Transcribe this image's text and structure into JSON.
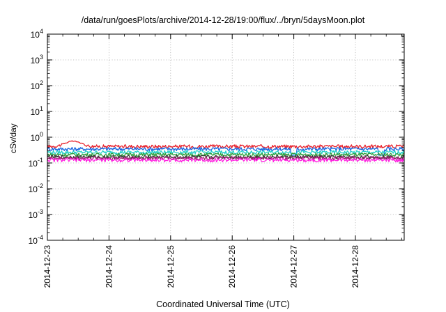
{
  "chart_data": {
    "type": "line",
    "title": "/data/run/goesPlots/archive/2014-12-28/19:00/flux/../bryn/5daysMoon.plot",
    "xlabel": "Coordinated Universal Time (UTC)",
    "ylabel": "cSv/day",
    "y_scale": "log",
    "grid": true,
    "ylim": [
      0.0001,
      10000
    ],
    "y_ticks": [
      {
        "base": "10",
        "exp": "4"
      },
      {
        "base": "10",
        "exp": "3"
      },
      {
        "base": "10",
        "exp": "2"
      },
      {
        "base": "10",
        "exp": "1"
      },
      {
        "base": "10",
        "exp": "0"
      },
      {
        "base": "10",
        "exp": "-1"
      },
      {
        "base": "10",
        "exp": "-2"
      },
      {
        "base": "10",
        "exp": "-3"
      },
      {
        "base": "10",
        "exp": "-4"
      }
    ],
    "xlim": [
      "2014-12-23T00:00",
      "2014-12-28T19:00"
    ],
    "x_ticks": [
      "2014-12-23",
      "2014-12-24",
      "2014-12-25",
      "2014-12-26",
      "2014-12-27",
      "2014-12-28"
    ],
    "series": [
      {
        "color": "#e8202a",
        "base": 0.44,
        "peak": [
          [
            "2014-12-23T10:00",
            0.7
          ]
        ]
      },
      {
        "color": "#1565e0",
        "base": 0.35,
        "dips": [
          [
            "2014-12-27T00:00",
            0.2
          ],
          [
            "2014-12-28T10:00",
            0.2
          ]
        ]
      },
      {
        "color": "#20d0c8",
        "base": 0.26
      },
      {
        "color": "#2e9e3a",
        "base": 0.21
      },
      {
        "color": "#333333",
        "base": 0.17
      },
      {
        "color": "#a02070",
        "base": 0.155
      },
      {
        "color": "#ff20e0",
        "base": 0.13
      }
    ]
  }
}
